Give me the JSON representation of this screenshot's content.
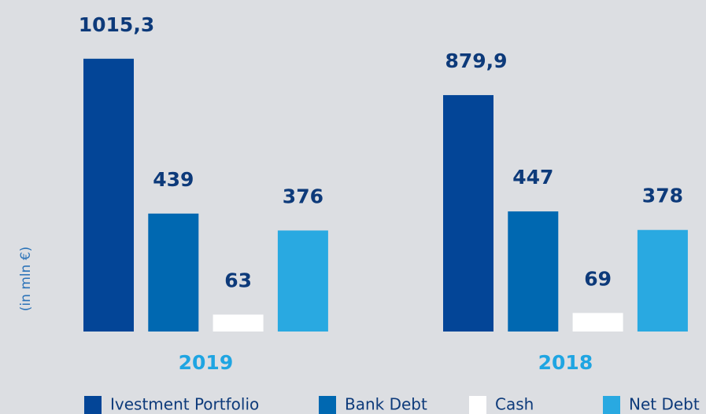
{
  "chart_data": {
    "type": "bar",
    "y_label": "(in mln €)",
    "categories": [
      "2019",
      "2018"
    ],
    "series": [
      {
        "name": "Ivestment Portfolio",
        "color": "#034597",
        "values": [
          1015.3,
          879.9
        ],
        "value_labels": [
          "1015,3",
          "879,9"
        ]
      },
      {
        "name": "Bank Debt",
        "color": "#0068b1",
        "values": [
          439,
          447
        ]
      },
      {
        "name": "Cash",
        "color": "#ffffff",
        "values": [
          63,
          69
        ]
      },
      {
        "name": "Net Debt",
        "color": "#29a9e1",
        "values": [
          376,
          378
        ]
      }
    ]
  }
}
